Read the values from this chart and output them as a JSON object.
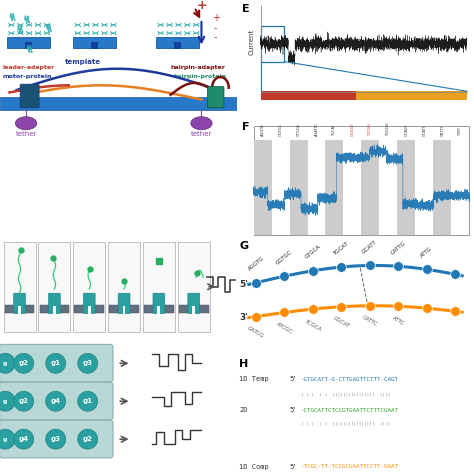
{
  "figure_bg": "#ffffff",
  "panel_E": {
    "label": "E",
    "ylabel": "Current",
    "noise_color": "#000000",
    "bar_red": "#c0392b",
    "bar_orange": "#e8a020",
    "zoom_box_color": "#1f77b4"
  },
  "panel_F": {
    "label": "F",
    "signal_color": "#1f77b4",
    "band_color": "#c8c8c8",
    "kmer_labels": [
      "AGGTB",
      "GGTGC",
      "GTGCA",
      "AGATTC",
      "TGCAT",
      "GGGGT",
      "TGTGG",
      "TGGGG",
      "GCAGT",
      "GCATT",
      "CNTTY",
      "TYNT"
    ],
    "kmer_red_indices": [
      5,
      6
    ]
  },
  "panel_G": {
    "label": "G",
    "top_color": "#1f77b4",
    "bot_color": "#ff8c00",
    "top_kmers": [
      "AGGTG",
      "GGTGC",
      "GTGCA",
      "TGCAT",
      "GCATT",
      "CATTG",
      "ATTG"
    ],
    "bot_kmers": [
      "GATCG",
      "ATCGC",
      "TCGCA",
      "CGCAT",
      "CATTC",
      "ATTC"
    ],
    "prime5": "5'",
    "prime3": "3'"
  },
  "panel_H": {
    "label": "H",
    "row1_label": "1D Temp",
    "row2_label": "2D",
    "row3_label": "1D Comp",
    "prime": "5'",
    "seq1": "GTGCATT-G-CTTGAGTTCTTT-CAGT",
    "seq1_color": "#1f77b4",
    "seq2": "CTGCATTCTCCGTGAATTCTTTCGAAT",
    "seq2_color": "#2ca02c",
    "seq3": "TCGC-TT-TCCGCGAATTCCTT-GAAT",
    "seq3_color": "#ff8c00",
    "match1": "| | |  | |  | ||||||||||||||  ||||",
    "match2": "| | |  | |  | ||||||||||||||  ||||"
  },
  "left_panels": {
    "top_bg": "#ffffff",
    "membrane_color": "#2060c0",
    "nanopore_color": "#2aa0a0",
    "spring_color": "#30b0b0",
    "dna_blue": "#2060c0",
    "dna_orange": "#e67e22",
    "dna_red": "#c0392b",
    "dna_darkred": "#7b1010",
    "dna_green": "#1e8b6a",
    "dna_purple": "#8e44ad",
    "tether_color": "#8e44ad",
    "box_bg": "#c8e0e0",
    "circle_color": "#2aa0a0",
    "circle_edge": "#1a8888",
    "arrow_color": "#555555",
    "step_color": "#333333"
  }
}
